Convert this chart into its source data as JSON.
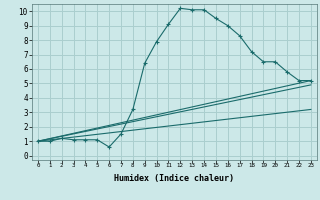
{
  "xlabel": "Humidex (Indice chaleur)",
  "ylabel": "",
  "xlim": [
    -0.5,
    23.5
  ],
  "ylim": [
    -0.3,
    10.5
  ],
  "bg_color": "#cce8e8",
  "grid_color": "#aacece",
  "line_color": "#1a6b6b",
  "xticks": [
    0,
    1,
    2,
    3,
    4,
    5,
    6,
    7,
    8,
    9,
    10,
    11,
    12,
    13,
    14,
    15,
    16,
    17,
    18,
    19,
    20,
    21,
    22,
    23
  ],
  "yticks": [
    0,
    1,
    2,
    3,
    4,
    5,
    6,
    7,
    8,
    9,
    10
  ],
  "series": [
    {
      "x": [
        0,
        1,
        2,
        3,
        4,
        5,
        6,
        7,
        8,
        9,
        10,
        11,
        12,
        13,
        14,
        15,
        16,
        17,
        18,
        19,
        20,
        21,
        22,
        23
      ],
      "y": [
        1,
        1,
        1.2,
        1.1,
        1.1,
        1.1,
        0.6,
        1.5,
        3.2,
        6.4,
        7.9,
        9.1,
        10.2,
        10.1,
        10.1,
        9.5,
        9.0,
        8.3,
        7.2,
        6.5,
        6.5,
        5.8,
        5.2,
        5.2
      ],
      "marker": "+"
    },
    {
      "x": [
        0,
        23
      ],
      "y": [
        1,
        5.2
      ],
      "marker": null
    },
    {
      "x": [
        0,
        23
      ],
      "y": [
        1,
        3.2
      ],
      "marker": null
    },
    {
      "x": [
        0,
        23
      ],
      "y": [
        1,
        4.9
      ],
      "marker": null
    }
  ]
}
